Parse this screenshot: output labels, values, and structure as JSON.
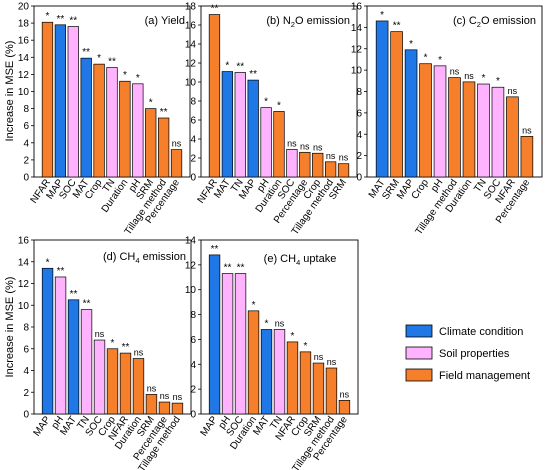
{
  "figure": {
    "ylabel": "Increase in MSE (%)",
    "legend": [
      {
        "name": "Climate condition",
        "color": "#1f78e6"
      },
      {
        "name": "Soil properties",
        "color": "#ffb3ff"
      },
      {
        "name": "Field management",
        "color": "#f57f2a"
      }
    ]
  },
  "chart_data": [
    {
      "type": "bar",
      "title": "(a) Yield",
      "ylim": [
        0,
        20
      ],
      "ticks": [
        "0",
        "2",
        "4",
        "6",
        "8",
        "10",
        "12",
        "14",
        "16",
        "18",
        "20"
      ],
      "show_ylabel": true,
      "categories": [
        "NFAR",
        "MAP",
        "SOC",
        "MAT",
        "Crop",
        "TN",
        "Duration",
        "pH",
        "SRM",
        "Tillage method",
        "Percentage"
      ],
      "values": [
        18.1,
        17.8,
        17.6,
        13.9,
        13.2,
        12.8,
        11.2,
        10.9,
        8.0,
        6.9,
        3.2
      ],
      "groups": [
        "Field management",
        "Climate condition",
        "Soil properties",
        "Climate condition",
        "Field management",
        "Soil properties",
        "Field management",
        "Soil properties",
        "Field management",
        "Field management",
        "Field management"
      ],
      "significance": [
        "*",
        "**",
        "**",
        "**",
        "*",
        "**",
        "*",
        "*",
        "*",
        "**",
        "ns"
      ]
    },
    {
      "type": "bar",
      "title_parts": [
        "(b) N",
        "2",
        "O emission"
      ],
      "ylim": [
        0,
        18
      ],
      "ticks": [
        "0",
        "2",
        "4",
        "6",
        "8",
        "10",
        "12",
        "14",
        "16",
        "18"
      ],
      "show_ylabel": false,
      "categories": [
        "NFAR",
        "MAT",
        "TN",
        "MAP",
        "pH",
        "Duration",
        "SOC",
        "Percentage",
        "Crop",
        "Tillage method",
        "SRM"
      ],
      "values": [
        17.1,
        11.1,
        11.0,
        10.2,
        7.3,
        6.9,
        2.9,
        2.6,
        2.5,
        1.6,
        1.4
      ],
      "groups": [
        "Field management",
        "Climate condition",
        "Soil properties",
        "Climate condition",
        "Soil properties",
        "Field management",
        "Soil properties",
        "Field management",
        "Field management",
        "Field management",
        "Field management"
      ],
      "significance": [
        "**",
        "*",
        "**",
        "**",
        "*",
        "*",
        "ns",
        "ns",
        "ns",
        "ns",
        "ns"
      ]
    },
    {
      "type": "bar",
      "title_parts": [
        "(c) C",
        "2",
        "O emission"
      ],
      "ylim": [
        0,
        16
      ],
      "ticks": [
        "0",
        "2",
        "4",
        "6",
        "8",
        "10",
        "12",
        "14",
        "16"
      ],
      "show_ylabel": false,
      "categories": [
        "MAT",
        "SRM",
        "MAP",
        "Crop",
        "pH",
        "Tillage method",
        "Duration",
        "TN",
        "SOC",
        "NFAR",
        "Percentage"
      ],
      "values": [
        14.6,
        13.6,
        11.9,
        10.6,
        10.4,
        9.3,
        8.9,
        8.7,
        8.4,
        7.5,
        3.8
      ],
      "groups": [
        "Climate condition",
        "Field management",
        "Climate condition",
        "Field management",
        "Soil properties",
        "Field management",
        "Field management",
        "Soil properties",
        "Soil properties",
        "Field management",
        "Field management"
      ],
      "significance": [
        "*",
        "**",
        "*",
        "*",
        "*",
        "ns",
        "ns",
        "*",
        "*",
        "ns",
        "ns"
      ]
    },
    {
      "type": "bar",
      "title_parts": [
        "(d) CH",
        "4",
        " emission"
      ],
      "ylim": [
        0,
        16
      ],
      "ticks": [
        "0",
        "2",
        "4",
        "6",
        "8",
        "10",
        "12",
        "14",
        "16"
      ],
      "show_ylabel": true,
      "categories": [
        "MAP",
        "pH",
        "MAT",
        "TN",
        "SOC",
        "Crop",
        "NFAR",
        "Duration",
        "SRM",
        "Percentage",
        "Tillage method"
      ],
      "values": [
        13.4,
        12.6,
        10.5,
        9.6,
        6.8,
        6.0,
        5.6,
        5.1,
        1.8,
        1.1,
        1.0
      ],
      "groups": [
        "Climate condition",
        "Soil properties",
        "Climate condition",
        "Soil properties",
        "Soil properties",
        "Field management",
        "Field management",
        "Field management",
        "Field management",
        "Field management",
        "Field management"
      ],
      "significance": [
        "*",
        "**",
        "**",
        "**",
        "ns",
        "*",
        "**",
        "ns",
        "ns",
        "ns",
        "ns"
      ]
    },
    {
      "type": "bar",
      "title_parts": [
        "(e) CH",
        "4",
        " uptake"
      ],
      "ylim": [
        0,
        14
      ],
      "ticks": [
        "0",
        "2",
        "4",
        "6",
        "8",
        "10",
        "12",
        "14"
      ],
      "show_ylabel": false,
      "categories": [
        "MAP",
        "pH",
        "SOC",
        "Duration",
        "MAT",
        "TN",
        "NFAR",
        "Crop",
        "SRM",
        "Tillage method",
        "Percentage"
      ],
      "values": [
        12.8,
        11.3,
        11.3,
        8.3,
        6.8,
        6.8,
        5.8,
        5.0,
        4.1,
        3.7,
        1.1
      ],
      "groups": [
        "Climate condition",
        "Soil properties",
        "Soil properties",
        "Field management",
        "Climate condition",
        "Soil properties",
        "Field management",
        "Field management",
        "Field management",
        "Field management",
        "Field management"
      ],
      "significance": [
        "**",
        "**",
        "**",
        "*",
        "*",
        "ns",
        "*",
        "*",
        "ns",
        "ns",
        "ns"
      ]
    }
  ]
}
